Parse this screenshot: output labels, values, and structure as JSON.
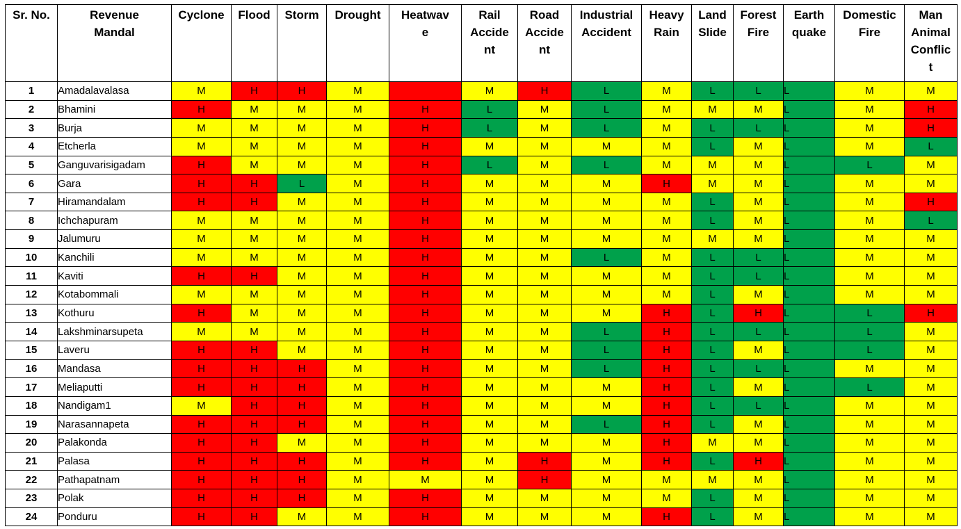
{
  "colors": {
    "H": "#ff0000",
    "M": "#ffff00",
    "L": "#00a14b",
    "header_bg": "#ffffff",
    "border": "#000000"
  },
  "headers": [
    "Sr. No.",
    "Revenue\nMandal",
    "Cyclone",
    "Flood",
    "Storm",
    "Drought",
    "Heatwav\ne",
    "Rail\nAccide\nnt",
    "Road\nAccide\nnt",
    "Industrial\nAccident",
    "Heavy\nRain",
    "Land\nSlide",
    "Forest\nFire",
    "Earth\nquake",
    "Domestic\nFire",
    "Man\nAnimal\nConflic\nt"
  ],
  "rows": [
    {
      "sr": "1",
      "mandal": "Amadalavalasa",
      "risks": [
        "M",
        "H",
        "H",
        "M",
        "",
        "M",
        "H",
        "L",
        "M",
        "L",
        "L",
        "L",
        "M",
        "M"
      ]
    },
    {
      "sr": "2",
      "mandal": "Bhamini",
      "risks": [
        "H",
        "M",
        "M",
        "M",
        "H",
        "L",
        "M",
        "L",
        "M",
        "M",
        "M",
        "L",
        "M",
        "H"
      ]
    },
    {
      "sr": "3",
      "mandal": "Burja",
      "risks": [
        "M",
        "M",
        "M",
        "M",
        "H",
        "L",
        "M",
        "L",
        "M",
        "L",
        "L",
        "L",
        "M",
        "H"
      ]
    },
    {
      "sr": "4",
      "mandal": "Etcherla",
      "risks": [
        "M",
        "M",
        "M",
        "M",
        "H",
        "M",
        "M",
        "M",
        "M",
        "L",
        "M",
        "L",
        "M",
        "L"
      ]
    },
    {
      "sr": "5",
      "mandal": "Ganguvarisigadam",
      "risks": [
        "H",
        "M",
        "M",
        "M",
        "H",
        "L",
        "M",
        "L",
        "M",
        "M",
        "M",
        "L",
        "L",
        "M"
      ]
    },
    {
      "sr": "6",
      "mandal": "Gara",
      "risks": [
        "H",
        "H",
        "L",
        "M",
        "H",
        "M",
        "M",
        "M",
        "H",
        "M",
        "M",
        "L",
        "M",
        "M"
      ]
    },
    {
      "sr": "7",
      "mandal": "Hiramandalam",
      "risks": [
        "H",
        "H",
        "M",
        "M",
        "H",
        "M",
        "M",
        "M",
        "M",
        "L",
        "M",
        "L",
        "M",
        "H"
      ]
    },
    {
      "sr": "8",
      "mandal": "Ichchapuram",
      "risks": [
        "M",
        "M",
        "M",
        "M",
        "H",
        "M",
        "M",
        "M",
        "M",
        "L",
        "M",
        "L",
        "M",
        "L"
      ]
    },
    {
      "sr": "9",
      "mandal": "Jalumuru",
      "risks": [
        "M",
        "M",
        "M",
        "M",
        "H",
        "M",
        "M",
        "M",
        "M",
        "M",
        "M",
        "L",
        "M",
        "M"
      ]
    },
    {
      "sr": "10",
      "mandal": "Kanchili",
      "risks": [
        "M",
        "M",
        "M",
        "M",
        "H",
        "M",
        "M",
        "L",
        "M",
        "L",
        "L",
        "L",
        "M",
        "M"
      ]
    },
    {
      "sr": "11",
      "mandal": "Kaviti",
      "risks": [
        "H",
        "H",
        "M",
        "M",
        "H",
        "M",
        "M",
        "M",
        "M",
        "L",
        "L",
        "L",
        "M",
        "M"
      ]
    },
    {
      "sr": "12",
      "mandal": "Kotabommali",
      "risks": [
        "M",
        "M",
        "M",
        "M",
        "H",
        "M",
        "M",
        "M",
        "M",
        "L",
        "M",
        "L",
        "M",
        "M"
      ]
    },
    {
      "sr": "13",
      "mandal": "Kothuru",
      "risks": [
        "H",
        "M",
        "M",
        "M",
        "H",
        "M",
        "M",
        "M",
        "H",
        "L",
        "H",
        "L",
        "L",
        "H"
      ]
    },
    {
      "sr": "14",
      "mandal": "Lakshminarsupeta",
      "risks": [
        "M",
        "M",
        "M",
        "M",
        "H",
        "M",
        "M",
        "L",
        "H",
        "L",
        "L",
        "L",
        "L",
        "M"
      ]
    },
    {
      "sr": "15",
      "mandal": "Laveru",
      "risks": [
        "H",
        "H",
        "M",
        "M",
        "H",
        "M",
        "M",
        "L",
        "H",
        "L",
        "M",
        "L",
        "L",
        "M"
      ]
    },
    {
      "sr": "16",
      "mandal": "Mandasa",
      "risks": [
        "H",
        "H",
        "H",
        "M",
        "H",
        "M",
        "M",
        "L",
        "H",
        "L",
        "L",
        "L",
        "M",
        "M"
      ]
    },
    {
      "sr": "17",
      "mandal": "Meliaputti",
      "risks": [
        "H",
        "H",
        "H",
        "M",
        "H",
        "M",
        "M",
        "M",
        "H",
        "L",
        "M",
        "L",
        "L",
        "M"
      ]
    },
    {
      "sr": "18",
      "mandal": "Nandigam1",
      "risks": [
        "M",
        "H",
        "H",
        "M",
        "H",
        "M",
        "M",
        "M",
        "H",
        "L",
        "L",
        "L",
        "M",
        "M"
      ]
    },
    {
      "sr": "19",
      "mandal": "Narasannapeta",
      "risks": [
        "H",
        "H",
        "H",
        "M",
        "H",
        "M",
        "M",
        "L",
        "H",
        "L",
        "M",
        "L",
        "M",
        "M"
      ]
    },
    {
      "sr": "20",
      "mandal": "Palakonda",
      "risks": [
        "H",
        "H",
        "M",
        "M",
        "H",
        "M",
        "M",
        "M",
        "H",
        "M",
        "M",
        "L",
        "M",
        "M"
      ]
    },
    {
      "sr": "21",
      "mandal": "Palasa",
      "risks": [
        "H",
        "H",
        "H",
        "M",
        "H",
        "M",
        "H",
        "M",
        "H",
        "L",
        "H",
        "L",
        "M",
        "M"
      ]
    },
    {
      "sr": "22",
      "mandal": "Pathapatnam",
      "risks": [
        "H",
        "H",
        "H",
        "M",
        "M",
        "M",
        "H",
        "M",
        "M",
        "M",
        "M",
        "L",
        "M",
        "M"
      ]
    },
    {
      "sr": "23",
      "mandal": "Polak",
      "risks": [
        "H",
        "H",
        "H",
        "M",
        "H",
        "M",
        "M",
        "M",
        "M",
        "L",
        "M",
        "L",
        "M",
        "M"
      ]
    },
    {
      "sr": "24",
      "mandal": "Ponduru",
      "risks": [
        "H",
        "H",
        "M",
        "M",
        "H",
        "M",
        "M",
        "M",
        "H",
        "L",
        "M",
        "L",
        "M",
        "M"
      ]
    }
  ]
}
